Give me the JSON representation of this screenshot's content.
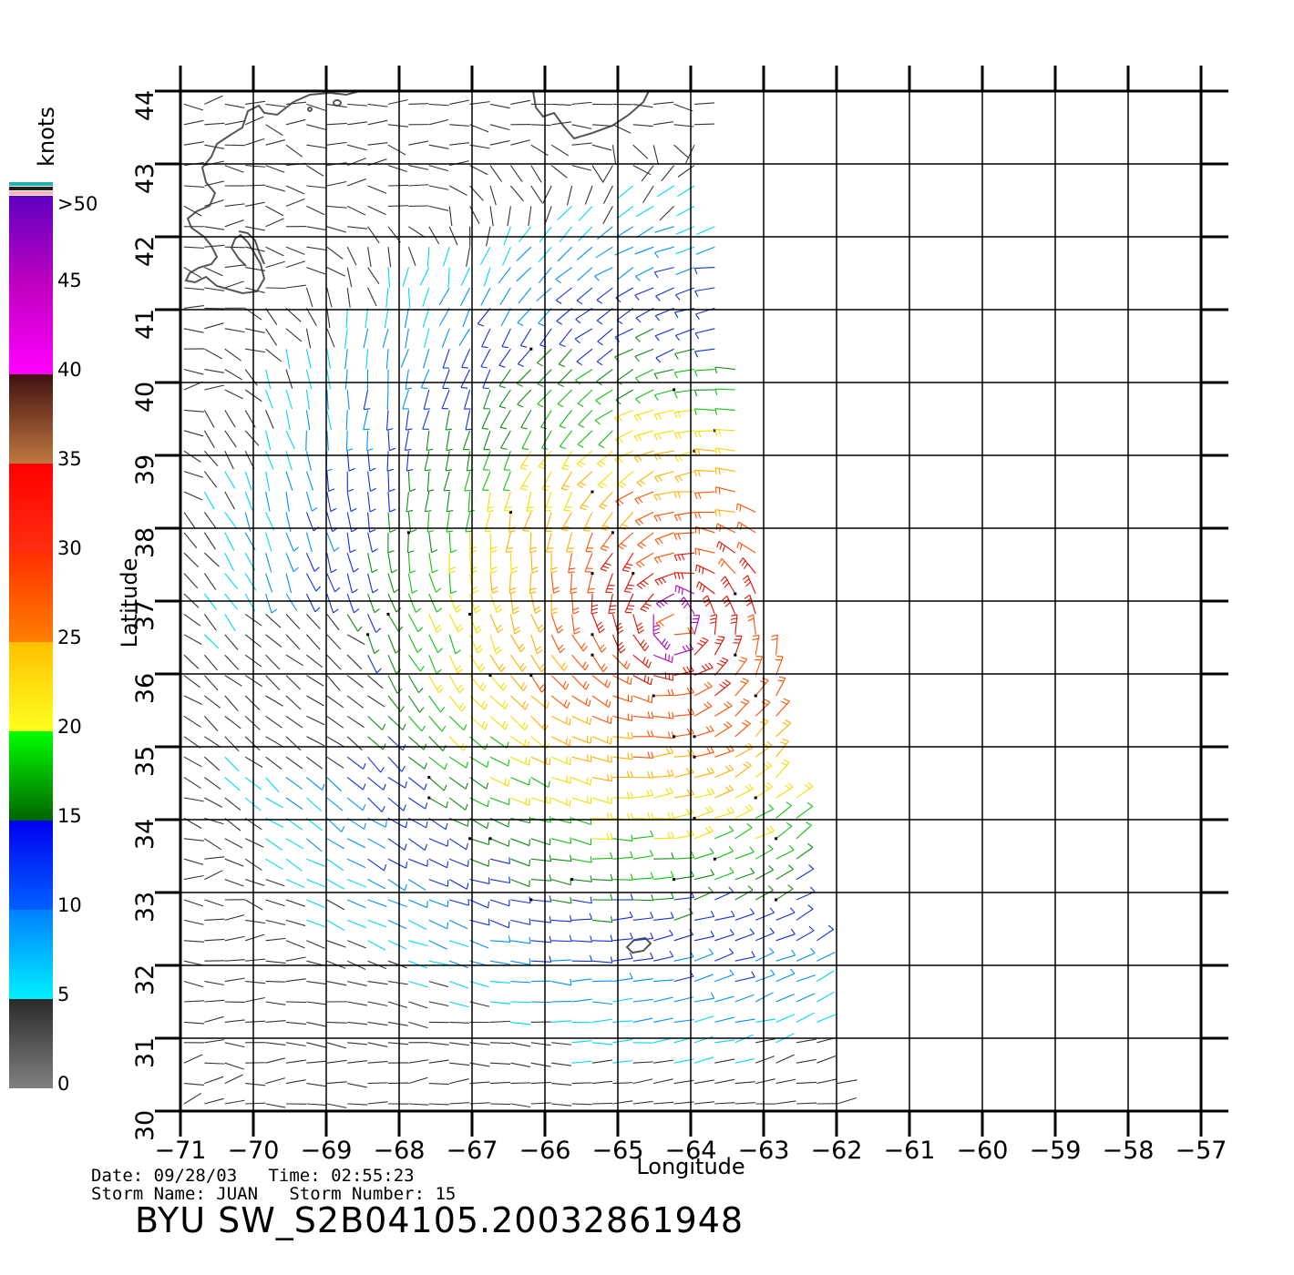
{
  "footer": {
    "date_line": "Date: 09/28/03   Time: 02:55:23",
    "storm_line": "Storm Name: JUAN   Storm Number: 15",
    "product_title": "BYU SW_S2B04105.20032861948"
  },
  "colorbar": {
    "unit_label": "knots",
    "stops": [
      {
        "label": "0",
        "value": 0
      },
      {
        "label": "5",
        "value": 5
      },
      {
        "label": "10",
        "value": 10
      },
      {
        "label": "15",
        "value": 15
      },
      {
        "label": "20",
        "value": 20
      },
      {
        "label": "25",
        "value": 25
      },
      {
        "label": "30",
        "value": 30
      },
      {
        "label": "35",
        "value": 35
      },
      {
        "label": "40",
        "value": 40
      },
      {
        "label": "45",
        "value": 45
      },
      {
        "label": ">50",
        "value": 50
      }
    ],
    "bands": [
      {
        "from": 0,
        "to": 5,
        "colors": [
          "#808080",
          "#2a2a2a"
        ]
      },
      {
        "from": 5,
        "to": 10,
        "colors": [
          "#00f0ff",
          "#0080ff"
        ]
      },
      {
        "from": 10,
        "to": 15,
        "colors": [
          "#0060ff",
          "#0000f0"
        ]
      },
      {
        "from": 15,
        "to": 20,
        "colors": [
          "#006400",
          "#00ff00"
        ]
      },
      {
        "from": 20,
        "to": 25,
        "colors": [
          "#ffff20",
          "#ffc000"
        ]
      },
      {
        "from": 25,
        "to": 30,
        "colors": [
          "#ff8000",
          "#ff3000"
        ]
      },
      {
        "from": 30,
        "to": 35,
        "colors": [
          "#ff3010",
          "#ff0000"
        ]
      },
      {
        "from": 35,
        "to": 40,
        "colors": [
          "#c07840",
          "#401010"
        ]
      },
      {
        "from": 40,
        "to": 45,
        "colors": [
          "#ff00ff",
          "#c000c0"
        ]
      },
      {
        "from": 45,
        "to": 50,
        "colors": [
          "#c000c0",
          "#6000c0"
        ]
      }
    ]
  },
  "chart_data": {
    "type": "scatter",
    "title": "BYU SW_S2B04105.20032861948",
    "xlabel": "Longitude",
    "ylabel": "Latitude",
    "xlim": [
      -71,
      -57
    ],
    "ylim": [
      30,
      44
    ],
    "xticks": [
      -71,
      -70,
      -69,
      -68,
      -67,
      -66,
      -65,
      -64,
      -63,
      -62,
      -61,
      -60,
      -59,
      -58,
      -57
    ],
    "yticks": [
      30,
      31,
      32,
      33,
      34,
      35,
      36,
      37,
      38,
      39,
      40,
      41,
      42,
      43,
      44
    ],
    "grid": true,
    "unit": "knots",
    "storm": {
      "name": "JUAN",
      "number": 15,
      "center_lon": -64.2,
      "center_lat": 36.7
    },
    "swath": {
      "west_lon": -71,
      "north_east_lon": -63.9,
      "south_east_lon": -61.9
    },
    "vector_spacing_deg": 0.28,
    "colors": {
      "coast": "#555555"
    }
  }
}
